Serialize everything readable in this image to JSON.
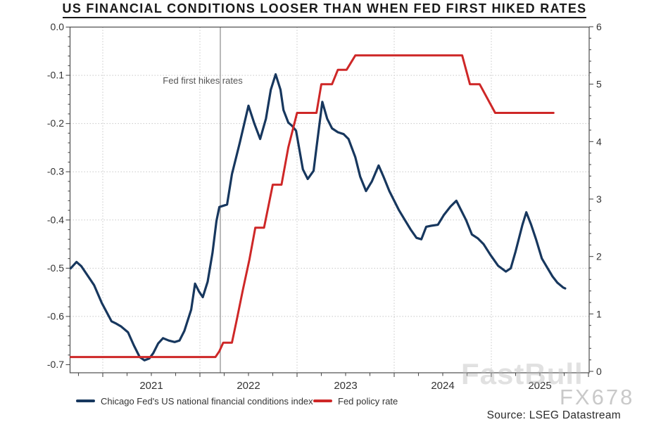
{
  "title": "US FINANCIAL CONDITIONS LOOSER THAN WHEN FED FIRST HIKED RATES",
  "annotation": {
    "label": "Fed first hikes rates",
    "x_year": 2022.21
  },
  "source": {
    "text": "Source: LSEG Datastream"
  },
  "watermarks": {
    "primary": "FastBull",
    "secondary": "FX678"
  },
  "legend": [
    {
      "label": "Chicago Fed's US national financial conditions index",
      "color": "#17375E"
    },
    {
      "label": "Fed policy rate",
      "color": "#CE2727"
    }
  ],
  "axes": {
    "x": {
      "tick_labels": [
        "2021",
        "2022",
        "2023",
        "2024",
        "2025"
      ],
      "label_years": [
        2021.5,
        2022.5,
        2023.5,
        2024.5,
        2025.5
      ],
      "gridline_years": [
        2021,
        2022,
        2023,
        2024,
        2025
      ],
      "range": [
        2020.67,
        2026.0
      ]
    },
    "y_left": {
      "tick_labels": [
        "0.0",
        "-0.1",
        "-0.2",
        "-0.3",
        "-0.4",
        "-0.5",
        "-0.6",
        "-0.7"
      ],
      "tick_values": [
        0,
        -0.1,
        -0.2,
        -0.3,
        -0.4,
        -0.5,
        -0.6,
        -0.7
      ],
      "gridline_values": [
        -0.1,
        -0.2,
        -0.3,
        -0.4,
        -0.5,
        -0.6
      ]
    },
    "y_right": {
      "tick_labels": [
        "6",
        "5",
        "4",
        "3",
        "2",
        "1",
        "0"
      ],
      "tick_values": [
        6,
        5,
        4,
        3,
        2,
        1,
        0
      ]
    }
  },
  "chart_data": {
    "type": "line",
    "title": "US FINANCIAL CONDITIONS LOOSER THAN WHEN FED FIRST HIKED RATES",
    "x_range_years": [
      2020.67,
      2026.0
    ],
    "left_ylim": [
      -0.7,
      0.0
    ],
    "right_ylim": [
      0,
      6
    ],
    "grid": "dotted",
    "legend_position": "bottom",
    "series": [
      {
        "name": "Chicago Fed's US national financial conditions index",
        "axis": "left",
        "color": "#17375E",
        "points": [
          [
            2020.67,
            -0.5
          ],
          [
            2020.73,
            -0.487
          ],
          [
            2020.78,
            -0.496
          ],
          [
            2020.91,
            -0.535
          ],
          [
            2020.99,
            -0.572
          ],
          [
            2021.09,
            -0.61
          ],
          [
            2021.14,
            -0.615
          ],
          [
            2021.19,
            -0.621
          ],
          [
            2021.26,
            -0.633
          ],
          [
            2021.32,
            -0.66
          ],
          [
            2021.38,
            -0.684
          ],
          [
            2021.43,
            -0.691
          ],
          [
            2021.48,
            -0.687
          ],
          [
            2021.52,
            -0.676
          ],
          [
            2021.57,
            -0.656
          ],
          [
            2021.62,
            -0.645
          ],
          [
            2021.68,
            -0.65
          ],
          [
            2021.74,
            -0.653
          ],
          [
            2021.79,
            -0.65
          ],
          [
            2021.84,
            -0.63
          ],
          [
            2021.91,
            -0.586
          ],
          [
            2021.95,
            -0.532
          ],
          [
            2021.99,
            -0.548
          ],
          [
            2022.03,
            -0.56
          ],
          [
            2022.08,
            -0.528
          ],
          [
            2022.13,
            -0.468
          ],
          [
            2022.17,
            -0.402
          ],
          [
            2022.2,
            -0.373
          ],
          [
            2022.28,
            -0.368
          ],
          [
            2022.33,
            -0.305
          ],
          [
            2022.41,
            -0.24
          ],
          [
            2022.5,
            -0.163
          ],
          [
            2022.56,
            -0.2
          ],
          [
            2022.62,
            -0.232
          ],
          [
            2022.68,
            -0.19
          ],
          [
            2022.73,
            -0.13
          ],
          [
            2022.78,
            -0.098
          ],
          [
            2022.83,
            -0.13
          ],
          [
            2022.86,
            -0.172
          ],
          [
            2022.91,
            -0.198
          ],
          [
            2022.95,
            -0.205
          ],
          [
            2022.99,
            -0.215
          ],
          [
            2023.06,
            -0.295
          ],
          [
            2023.11,
            -0.315
          ],
          [
            2023.17,
            -0.298
          ],
          [
            2023.2,
            -0.25
          ],
          [
            2023.26,
            -0.155
          ],
          [
            2023.31,
            -0.19
          ],
          [
            2023.36,
            -0.21
          ],
          [
            2023.42,
            -0.218
          ],
          [
            2023.48,
            -0.222
          ],
          [
            2023.53,
            -0.232
          ],
          [
            2023.6,
            -0.27
          ],
          [
            2023.65,
            -0.31
          ],
          [
            2023.71,
            -0.34
          ],
          [
            2023.77,
            -0.32
          ],
          [
            2023.84,
            -0.287
          ],
          [
            2023.89,
            -0.31
          ],
          [
            2023.95,
            -0.34
          ],
          [
            2024.0,
            -0.36
          ],
          [
            2024.05,
            -0.38
          ],
          [
            2024.11,
            -0.4
          ],
          [
            2024.17,
            -0.42
          ],
          [
            2024.23,
            -0.437
          ],
          [
            2024.28,
            -0.44
          ],
          [
            2024.33,
            -0.414
          ],
          [
            2024.38,
            -0.412
          ],
          [
            2024.45,
            -0.41
          ],
          [
            2024.51,
            -0.39
          ],
          [
            2024.58,
            -0.372
          ],
          [
            2024.64,
            -0.36
          ],
          [
            2024.69,
            -0.38
          ],
          [
            2024.74,
            -0.4
          ],
          [
            2024.8,
            -0.43
          ],
          [
            2024.86,
            -0.438
          ],
          [
            2024.92,
            -0.45
          ],
          [
            2024.99,
            -0.472
          ],
          [
            2025.07,
            -0.495
          ],
          [
            2025.15,
            -0.507
          ],
          [
            2025.2,
            -0.5
          ],
          [
            2025.25,
            -0.465
          ],
          [
            2025.32,
            -0.41
          ],
          [
            2025.36,
            -0.384
          ],
          [
            2025.41,
            -0.41
          ],
          [
            2025.46,
            -0.44
          ],
          [
            2025.52,
            -0.48
          ],
          [
            2025.58,
            -0.5
          ],
          [
            2025.63,
            -0.517
          ],
          [
            2025.68,
            -0.53
          ],
          [
            2025.74,
            -0.54
          ],
          [
            2025.76,
            -0.542
          ]
        ]
      },
      {
        "name": "Fed policy rate",
        "axis": "right",
        "color": "#CE2727",
        "points": [
          [
            2020.67,
            0.25
          ],
          [
            2022.16,
            0.25
          ],
          [
            2022.2,
            0.35
          ],
          [
            2022.24,
            0.5
          ],
          [
            2022.33,
            0.5
          ],
          [
            2022.38,
            0.9
          ],
          [
            2022.44,
            1.4
          ],
          [
            2022.51,
            1.95
          ],
          [
            2022.57,
            2.5
          ],
          [
            2022.66,
            2.5
          ],
          [
            2022.75,
            3.25
          ],
          [
            2022.84,
            3.25
          ],
          [
            2022.91,
            3.9
          ],
          [
            2023.0,
            4.5
          ],
          [
            2023.2,
            4.5
          ],
          [
            2023.25,
            5.0
          ],
          [
            2023.36,
            5.0
          ],
          [
            2023.42,
            5.25
          ],
          [
            2023.51,
            5.25
          ],
          [
            2023.6,
            5.5
          ],
          [
            2024.7,
            5.5
          ],
          [
            2024.78,
            5.0
          ],
          [
            2024.88,
            5.0
          ],
          [
            2025.04,
            4.5
          ],
          [
            2025.64,
            4.5
          ]
        ]
      }
    ]
  }
}
